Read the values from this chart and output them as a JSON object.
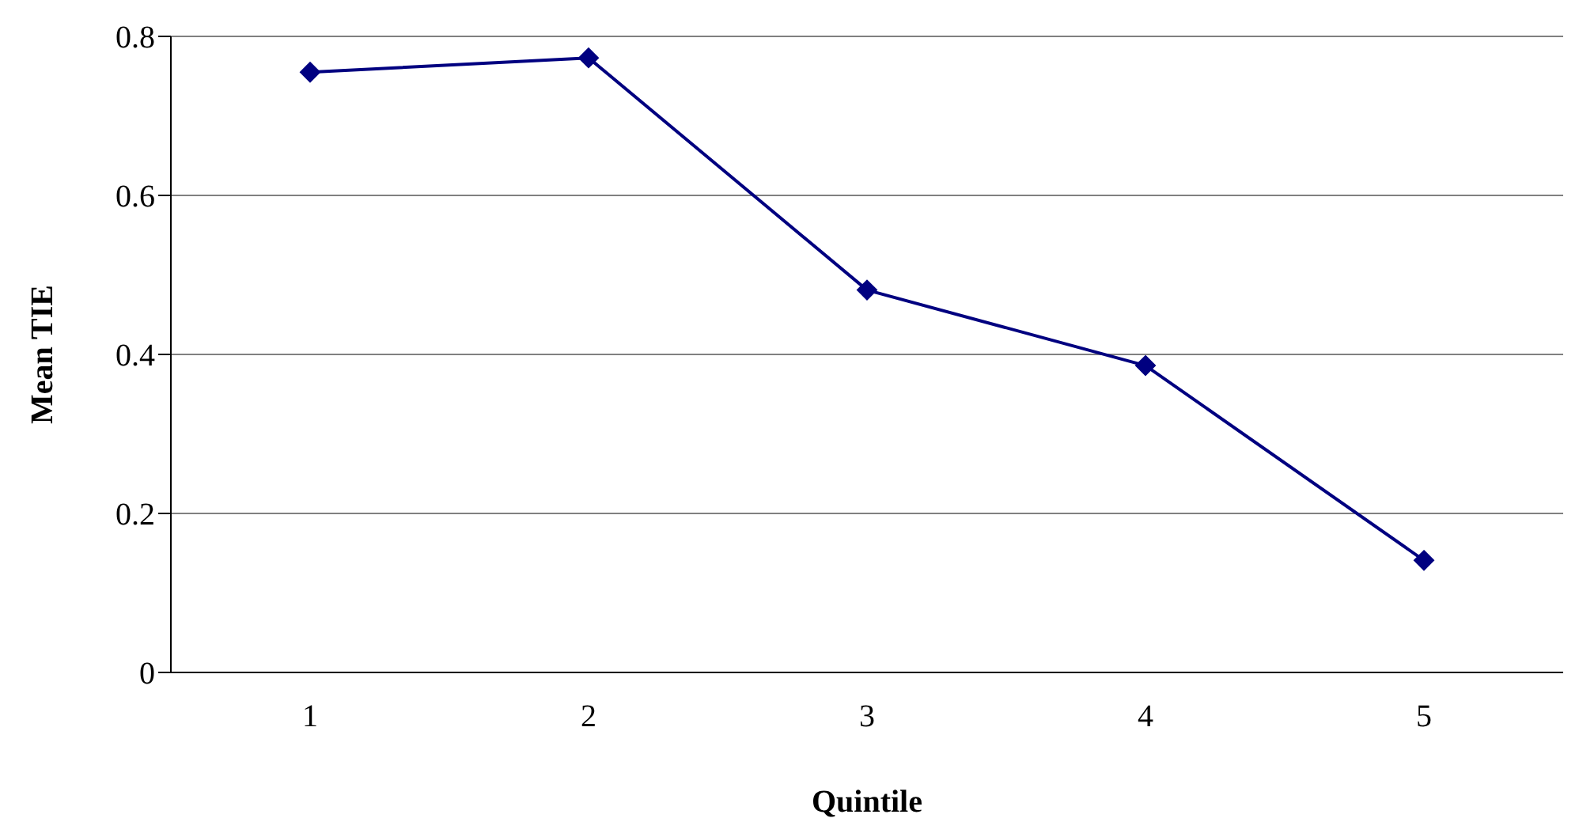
{
  "chart_data": {
    "type": "line",
    "xlabel": "Quintile",
    "ylabel": "Mean TIE",
    "categories": [
      "1",
      "2",
      "3",
      "4",
      "5"
    ],
    "series": [
      {
        "color": "#000080",
        "values": [
          0.755,
          0.773,
          0.481,
          0.386,
          0.141
        ]
      }
    ],
    "ylim": [
      0,
      0.8
    ],
    "yticks": [
      0,
      0.2,
      0.4,
      0.6,
      0.8
    ],
    "grid": "y",
    "marker": "diamond",
    "line_style": "solid",
    "legend": false
  }
}
